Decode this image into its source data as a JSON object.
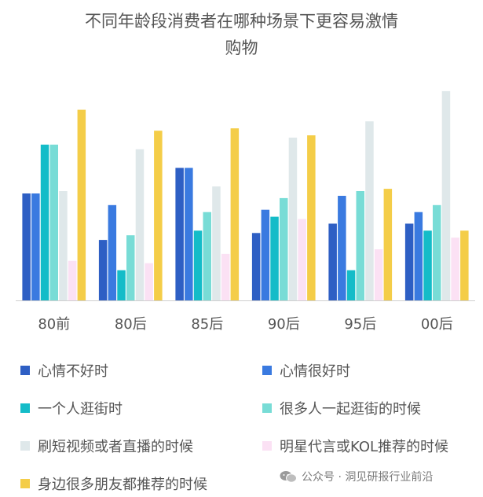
{
  "chart_data": {
    "type": "bar",
    "title_lines": [
      "不同年龄段消费者在哪种场景下更容易激情",
      "购物"
    ],
    "categories": [
      "80前",
      "80后",
      "85后",
      "90后",
      "95后",
      "00后"
    ],
    "series": [
      {
        "name": "心情不好时",
        "color": "#2e5fc4",
        "values": [
          46,
          26,
          57,
          29,
          33,
          33
        ]
      },
      {
        "name": "心情很好时",
        "color": "#3a7ae0",
        "values": [
          46,
          41,
          57,
          39,
          45,
          38
        ]
      },
      {
        "name": "一个人逛街时",
        "color": "#14bcc8",
        "values": [
          67,
          13,
          30,
          36,
          13,
          30
        ]
      },
      {
        "name": "很多人一起逛街的时候",
        "color": "#78dcd6",
        "values": [
          67,
          28,
          38,
          44,
          47,
          41
        ]
      },
      {
        "name": "刷短视频或者直播的时候",
        "color": "#dfe8ea",
        "values": [
          47,
          65,
          49,
          70,
          77,
          90
        ]
      },
      {
        "name": "明星代言或KOL推荐的时候",
        "color": "#fbe1f4",
        "values": [
          17,
          16,
          20,
          35,
          22,
          27
        ]
      },
      {
        "name": "身边很多朋友都推荐的时候",
        "color": "#f4cd48",
        "values": [
          82,
          73,
          74,
          71,
          48,
          30
        ]
      }
    ],
    "ylim": [
      0,
      92
    ],
    "grid": false,
    "legend_position": "bottom"
  },
  "watermark": {
    "text": "公众号 · 洞见研报行业前沿",
    "icon": "wechat-icon"
  }
}
